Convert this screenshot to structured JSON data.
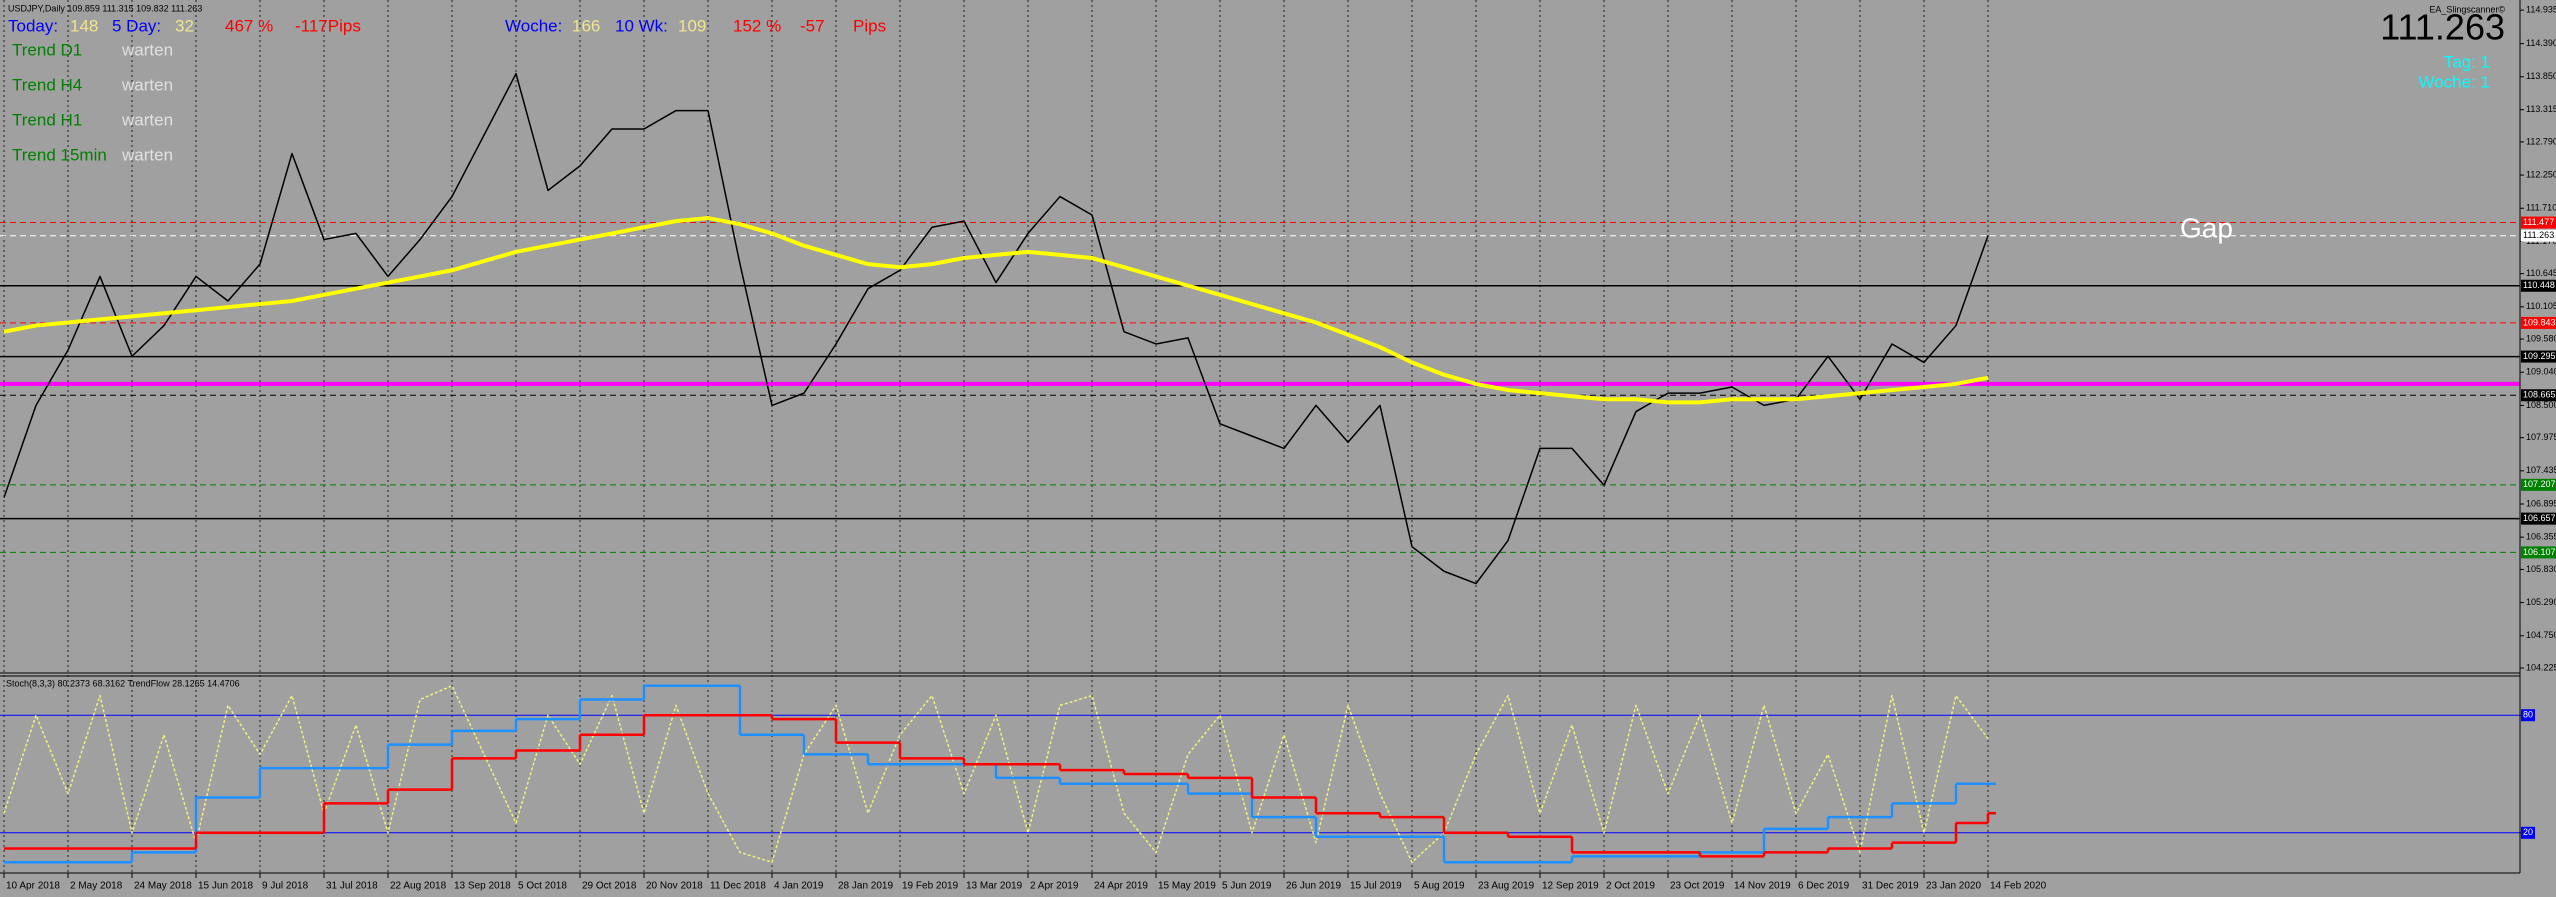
{
  "info": {
    "symbol": "USDJPY,Daily  109.859 111.315 109.832 111.263",
    "today_label": "Today:",
    "today_value": "148",
    "day5_label": "5 Day:",
    "day5_value": "32",
    "pct": "467 %",
    "pips": "-117Pips",
    "week_label": "Woche:",
    "week_value": "166",
    "wk10_label": "10 Wk:",
    "wk10_value": "109",
    "wk_pct": "152 %",
    "wk_pips": "-57",
    "wk_pips_unit": "Pips",
    "trends": [
      {
        "label": "Trend D1",
        "status": "warten"
      },
      {
        "label": "Trend H4",
        "status": "warten"
      },
      {
        "label": "Trend H1",
        "status": "warten"
      },
      {
        "label": "Trend 15min",
        "status": "warten"
      }
    ],
    "ea": "EA_Slingscanner©",
    "price": "111.263",
    "tag": "Tag:  1",
    "woche": "Woche:  1",
    "gap": "Gap",
    "indicator_title": "Stoch(8,3,3) 80.2373 68.3162  TrendFlow 28.1265 14.4706"
  },
  "chart_data": [
    {
      "type": "line",
      "categories": [
        "10 Apr 2018",
        null,
        "2 May 2018",
        null,
        "24 May 2018",
        null,
        "15 Jun 2018",
        null,
        "9 Jul 2018",
        null,
        "31 Jul 2018",
        null,
        "22 Aug 2018",
        null,
        "13 Sep 2018",
        null,
        "5 Oct 2018",
        null,
        "29 Oct 2018",
        null,
        "20 Nov 2018",
        null,
        "11 Dec 2018",
        null,
        "4 Jan 2019",
        null,
        "28 Jan 2019",
        null,
        "19 Feb 2019",
        null,
        "13 Mar 2019",
        null,
        "2 Apr 2019",
        null,
        "24 Apr 2019",
        null,
        "15 May 2019",
        null,
        "5 Jun 2019",
        null,
        "26 Jun 2019",
        null,
        "15 Jul 2019",
        null,
        "5 Aug 2019",
        null,
        "23 Aug 2019",
        null,
        "12 Sep 2019",
        null,
        "2 Oct 2019",
        null,
        "23 Oct 2019",
        null,
        "14 Nov 2019",
        null,
        "6 Dec 2019",
        null,
        "31 Dec 2019",
        null,
        "23 Jan 2020",
        null,
        "14 Feb 2020"
      ],
      "series": [
        {
          "color": "#000000",
          "width": 1.5,
          "values": [
            107.0,
            108.5,
            109.4,
            110.6,
            109.3,
            109.8,
            110.6,
            110.2,
            110.8,
            112.6,
            111.2,
            111.3,
            110.6,
            111.2,
            111.9,
            112.9,
            113.9,
            112.0,
            112.4,
            113.0,
            113.0,
            113.3,
            113.3,
            110.8,
            108.5,
            108.7,
            109.5,
            110.4,
            110.7,
            111.4,
            111.5,
            110.5,
            111.3,
            111.9,
            111.6,
            109.7,
            109.5,
            109.6,
            108.2,
            108.0,
            107.8,
            108.5,
            107.9,
            108.5,
            106.2,
            105.8,
            105.6,
            106.3,
            107.8,
            107.8,
            107.2,
            108.4,
            108.7,
            108.7,
            108.8,
            108.5,
            108.6,
            109.3,
            108.6,
            109.5,
            109.2,
            109.8,
            111.263
          ]
        },
        {
          "color": "#ffff00",
          "width": 4,
          "values": [
            109.7,
            109.8,
            109.85,
            109.9,
            109.95,
            110.0,
            110.05,
            110.1,
            110.15,
            110.2,
            110.3,
            110.4,
            110.5,
            110.6,
            110.7,
            110.85,
            111.0,
            111.1,
            111.2,
            111.3,
            111.4,
            111.5,
            111.55,
            111.45,
            111.3,
            111.1,
            110.95,
            110.8,
            110.75,
            110.8,
            110.9,
            110.95,
            111.0,
            110.95,
            110.9,
            110.75,
            110.6,
            110.45,
            110.3,
            110.15,
            110.0,
            109.85,
            109.65,
            109.45,
            109.2,
            109.0,
            108.85,
            108.75,
            108.7,
            108.65,
            108.6,
            108.6,
            108.55,
            108.55,
            108.6,
            108.6,
            108.6,
            108.65,
            108.7,
            108.75,
            108.8,
            108.85,
            108.95
          ]
        }
      ],
      "ylim": [
        104.16,
        115.1
      ],
      "yticks": [
        114.935,
        {
          "value": 114.39,
          "label": "114.390"
        },
        {
          "value": 113.85,
          "label": "113.850"
        },
        113.315,
        {
          "value": 112.79,
          "label": "112.790"
        },
        {
          "value": 112.25,
          "label": "112.250"
        },
        {
          "value": 111.71,
          "label": "111.710"
        },
        {
          "value": 111.17,
          "label": "111.170"
        },
        110.645,
        110.105,
        {
          "value": 109.58,
          "label": "109.580"
        },
        {
          "value": 109.04,
          "label": "109.040"
        },
        {
          "value": 108.5,
          "label": "108.500"
        },
        107.975,
        107.435,
        106.895,
        106.355,
        {
          "value": 105.83,
          "label": "105.830"
        },
        {
          "value": 105.29,
          "label": "105.290"
        },
        {
          "value": 104.75,
          "label": "104.750"
        },
        104.225
      ],
      "levels": [
        {
          "value": 111.477,
          "color": "#ff0000",
          "dash": true
        },
        {
          "value": 111.263,
          "color": "#ffffff",
          "dash": true
        },
        {
          "value": 110.448,
          "color": "#000000",
          "dash": false
        },
        {
          "value": 109.843,
          "color": "#ff0000",
          "dash": true
        },
        {
          "value": 109.295,
          "color": "#000000",
          "dash": false
        },
        {
          "value": 108.665,
          "color": "#000000",
          "dash": true
        },
        {
          "value": 107.207,
          "color": "#008000",
          "dash": true
        },
        {
          "value": 106.657,
          "color": "#000000",
          "dash": false
        },
        {
          "value": 106.107,
          "color": "#008000",
          "dash": true
        }
      ],
      "band_level": 108.85,
      "band_color": "#ff00ff"
    },
    {
      "type": "line",
      "ylim": [
        0,
        100
      ],
      "yticks": [
        80,
        20
      ],
      "level_color": "#0000ff",
      "series": [
        {
          "color": "#f0f080",
          "style": "dotted",
          "values": [
            30,
            80,
            40,
            90,
            20,
            70,
            15,
            85,
            60,
            90,
            30,
            75,
            20,
            88,
            95,
            60,
            25,
            80,
            55,
            90,
            30,
            85,
            40,
            10,
            5,
            60,
            85,
            30,
            70,
            90,
            40,
            80,
            20,
            85,
            90,
            30,
            10,
            60,
            80,
            20,
            70,
            15,
            85,
            40,
            5,
            20,
            60,
            90,
            30,
            75,
            20,
            85,
            40,
            80,
            25,
            85,
            30,
            60,
            10,
            90,
            20,
            90,
            68
          ]
        },
        {
          "color": "#1e90ff",
          "style": "step",
          "values": [
            5,
            5,
            5,
            5,
            10,
            10,
            38,
            38,
            53,
            53,
            53,
            53,
            65,
            65,
            72,
            72,
            78,
            78,
            88,
            88,
            95,
            95,
            95,
            70,
            70,
            60,
            60,
            55,
            55,
            55,
            55,
            48,
            48,
            45,
            45,
            45,
            45,
            40,
            40,
            28,
            28,
            18,
            18,
            18,
            18,
            5,
            5,
            5,
            5,
            8,
            8,
            8,
            8,
            10,
            10,
            22,
            22,
            28,
            28,
            35,
            35,
            45,
            45
          ]
        },
        {
          "color": "#ff0000",
          "style": "step",
          "values": [
            12,
            12,
            12,
            12,
            12,
            12,
            20,
            20,
            20,
            20,
            35,
            35,
            42,
            42,
            58,
            58,
            62,
            62,
            70,
            70,
            80,
            80,
            80,
            80,
            78,
            78,
            66,
            66,
            58,
            58,
            55,
            55,
            55,
            52,
            52,
            50,
            50,
            48,
            48,
            38,
            38,
            30,
            30,
            28,
            28,
            20,
            20,
            18,
            18,
            10,
            10,
            10,
            10,
            8,
            8,
            10,
            10,
            12,
            12,
            15,
            15,
            25,
            30
          ]
        }
      ]
    }
  ]
}
